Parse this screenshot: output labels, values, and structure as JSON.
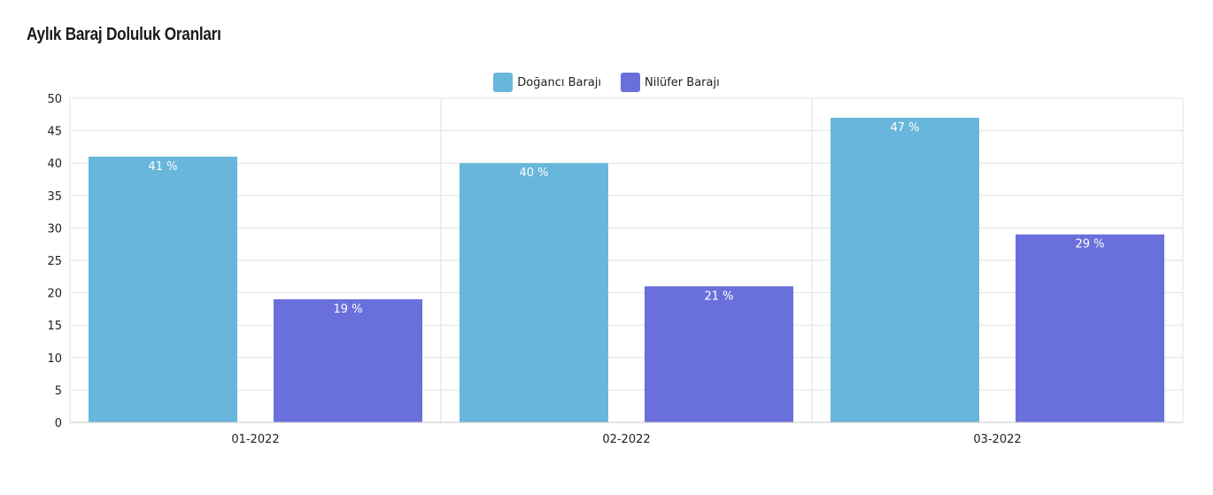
{
  "chart_data": {
    "type": "bar",
    "title": "Aylık Baraj Doluluk Oranları",
    "categories": [
      "01-2022",
      "02-2022",
      "03-2022"
    ],
    "series": [
      {
        "name": "Doğancı Barajı",
        "values": [
          41,
          40,
          47
        ],
        "color": "#68b6db"
      },
      {
        "name": "Nilüfer Barajı",
        "values": [
          19,
          21,
          29
        ],
        "color": "#6a70db"
      }
    ],
    "label_suffix": " %",
    "ylim": [
      0,
      50
    ],
    "yticks": [
      0,
      5,
      10,
      15,
      20,
      25,
      30,
      35,
      40,
      45,
      50
    ],
    "grid": true,
    "legend_position": "top-center"
  }
}
